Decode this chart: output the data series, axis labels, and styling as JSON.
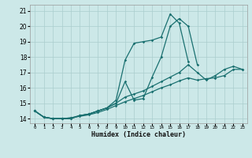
{
  "xlabel": "Humidex (Indice chaleur)",
  "bg_color": "#cce8e8",
  "grid_color": "#aacece",
  "line_color": "#1a7070",
  "xlim": [
    -0.5,
    23.5
  ],
  "ylim": [
    13.7,
    21.4
  ],
  "xticks": [
    0,
    1,
    2,
    3,
    4,
    5,
    6,
    7,
    8,
    9,
    10,
    11,
    12,
    13,
    14,
    15,
    16,
    17,
    18,
    19,
    20,
    21,
    22,
    23
  ],
  "yticks": [
    14,
    15,
    16,
    17,
    18,
    19,
    20,
    21
  ],
  "lines": [
    [
      14.5,
      14.1,
      14.0,
      14.0,
      14.0,
      14.2,
      14.3,
      14.5,
      14.7,
      15.2,
      17.8,
      18.9,
      19.0,
      19.1,
      19.3,
      20.8,
      20.2,
      17.7,
      null,
      null,
      null,
      null,
      null,
      null
    ],
    [
      14.5,
      14.1,
      14.0,
      14.0,
      14.0,
      14.2,
      14.3,
      14.5,
      14.7,
      15.0,
      16.4,
      15.2,
      15.3,
      16.7,
      18.0,
      20.0,
      20.5,
      20.0,
      17.5,
      null,
      null,
      null,
      null,
      null
    ],
    [
      14.5,
      14.1,
      14.0,
      14.0,
      14.05,
      14.2,
      14.3,
      14.5,
      14.7,
      15.0,
      15.4,
      15.6,
      15.8,
      16.1,
      16.4,
      16.7,
      17.0,
      17.5,
      17.0,
      16.5,
      16.8,
      17.2,
      17.4,
      17.2
    ],
    [
      14.5,
      14.1,
      14.0,
      14.0,
      14.05,
      14.15,
      14.25,
      14.4,
      14.6,
      14.85,
      15.1,
      15.3,
      15.5,
      15.75,
      16.0,
      16.2,
      16.45,
      16.65,
      16.5,
      16.6,
      16.65,
      16.8,
      17.2,
      17.2
    ]
  ]
}
